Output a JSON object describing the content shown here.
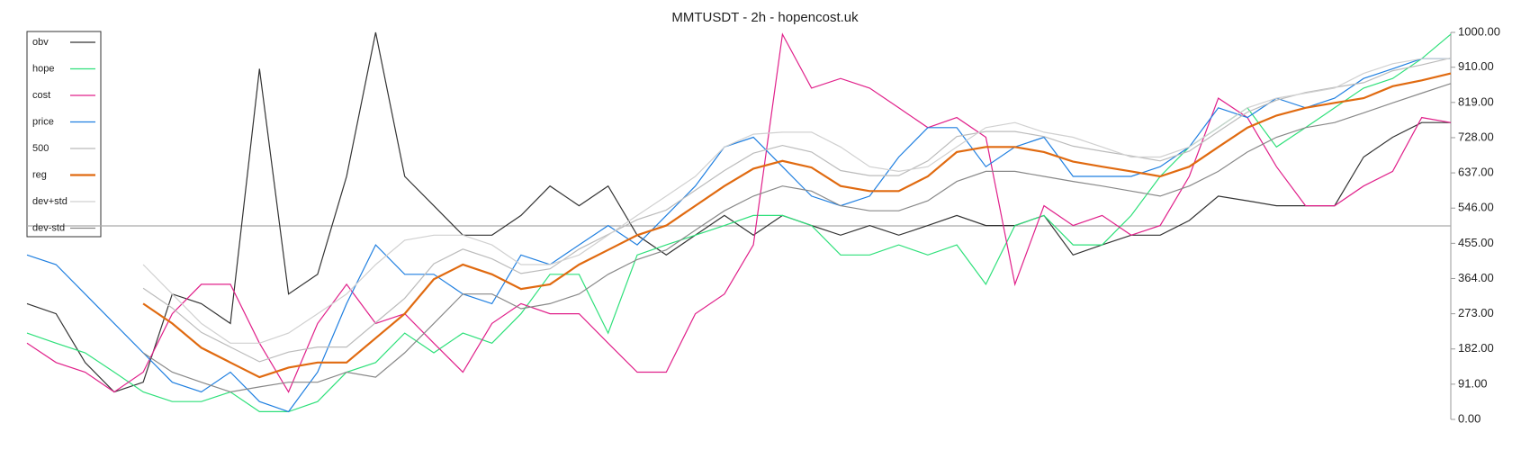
{
  "chart_data": {
    "type": "line",
    "title": "MMTUSDT - 2h - hopencost.uk",
    "categories": [
      null,
      null,
      null,
      null,
      null,
      null,
      null,
      null,
      null,
      null,
      null,
      null,
      null,
      null,
      null,
      null,
      null,
      null,
      null,
      null,
      null,
      null,
      null,
      null,
      null,
      null,
      null,
      null,
      null,
      null,
      null,
      null,
      null,
      null,
      null,
      null,
      null,
      null,
      null,
      null,
      null,
      null,
      null,
      null,
      null,
      null,
      null,
      null,
      null,
      null
    ],
    "ylim": [
      0,
      1000
    ],
    "yticks": [
      {
        "value": 0,
        "label": "0.00"
      },
      {
        "value": 91,
        "label": "91.00"
      },
      {
        "value": 182,
        "label": "182.00"
      },
      {
        "value": 273,
        "label": "273.00"
      },
      {
        "value": 364,
        "label": "364.00"
      },
      {
        "value": 455,
        "label": "455.00"
      },
      {
        "value": 546,
        "label": "546.00"
      },
      {
        "value": 637,
        "label": "637.00"
      },
      {
        "value": 728,
        "label": "728.00"
      },
      {
        "value": 819,
        "label": "819.00"
      },
      {
        "value": 910,
        "label": "910.00"
      },
      {
        "value": 1000,
        "label": "1000.00"
      }
    ],
    "reference_line": 500,
    "legend": "top-left",
    "series": [
      {
        "name": "obv",
        "color": "#333333",
        "values": [
          299,
          273,
          147,
          71,
          96,
          324,
          299,
          248,
          906,
          324,
          375,
          628,
          1000,
          628,
          552,
          476,
          476,
          527,
          603,
          552,
          603,
          476,
          425,
          476,
          527,
          476,
          527,
          501,
          476,
          501,
          476,
          501,
          527,
          501,
          501,
          527,
          425,
          451,
          476,
          476,
          514,
          577,
          565,
          552,
          552,
          552,
          678,
          729,
          767,
          767
        ]
      },
      {
        "name": "hope",
        "color": "#2ee07a",
        "values": [
          223,
          197,
          172,
          122,
          71,
          46,
          46,
          71,
          20,
          20,
          46,
          122,
          147,
          223,
          172,
          223,
          197,
          273,
          375,
          375,
          223,
          425,
          451,
          476,
          501,
          527,
          527,
          501,
          425,
          425,
          451,
          425,
          451,
          349,
          501,
          527,
          451,
          451,
          527,
          628,
          704,
          754,
          805,
          704,
          754,
          805,
          856,
          881,
          932,
          995
        ]
      },
      {
        "name": "cost",
        "color": "#e0208a",
        "values": [
          197,
          147,
          122,
          71,
          122,
          273,
          349,
          349,
          197,
          71,
          248,
          349,
          248,
          273,
          197,
          122,
          248,
          299,
          273,
          273,
          197,
          122,
          122,
          273,
          324,
          451,
          995,
          856,
          881,
          856,
          805,
          754,
          780,
          729,
          349,
          552,
          501,
          527,
          476,
          501,
          628,
          830,
          780,
          653,
          552,
          552,
          603,
          641,
          780,
          767
        ]
      },
      {
        "name": "price",
        "color": "#1f7fe0",
        "values": [
          425,
          400,
          324,
          248,
          172,
          96,
          71,
          122,
          46,
          20,
          122,
          299,
          451,
          375,
          375,
          324,
          299,
          425,
          400,
          451,
          501,
          451,
          527,
          603,
          704,
          729,
          653,
          577,
          552,
          577,
          678,
          754,
          754,
          653,
          704,
          729,
          628,
          628,
          628,
          653,
          704,
          805,
          780,
          830,
          805,
          830,
          881,
          906,
          932,
          932
        ]
      },
      {
        "name": "500",
        "color": "#bbbbbb",
        "values": [
          null,
          null,
          null,
          null,
          339,
          288,
          225,
          187,
          149,
          174,
          187,
          187,
          250,
          313,
          402,
          440,
          415,
          377,
          389,
          440,
          478,
          516,
          541,
          592,
          643,
          688,
          708,
          691,
          643,
          630,
          630,
          668,
          731,
          744,
          744,
          731,
          706,
          693,
          681,
          668,
          693,
          744,
          794,
          825,
          845,
          858,
          870,
          901,
          916,
          934
        ]
      },
      {
        "name": "reg",
        "color": "#e06a10",
        "values": [
          null,
          null,
          null,
          null,
          299,
          248,
          185,
          147,
          109,
          134,
          147,
          147,
          210,
          273,
          362,
          400,
          375,
          337,
          349,
          400,
          438,
          476,
          501,
          552,
          603,
          648,
          668,
          651,
          603,
          590,
          590,
          628,
          691,
          704,
          704,
          691,
          666,
          653,
          641,
          628,
          653,
          704,
          754,
          785,
          805,
          818,
          830,
          861,
          876,
          894
        ]
      },
      {
        "name": "dev+std",
        "color": "#d0d0d0",
        "values": [
          null,
          null,
          null,
          null,
          400,
          324,
          248,
          197,
          197,
          223,
          273,
          324,
          400,
          463,
          476,
          476,
          451,
          400,
          400,
          425,
          476,
          527,
          577,
          628,
          704,
          737,
          742,
          742,
          704,
          653,
          641,
          653,
          704,
          754,
          767,
          742,
          729,
          704,
          678,
          678,
          704,
          754,
          805,
          830,
          843,
          856,
          894,
          919,
          932,
          932
        ]
      },
      {
        "name": "dev-std",
        "color": "#888888",
        "values": [
          null,
          null,
          null,
          null,
          172,
          122,
          96,
          71,
          84,
          96,
          96,
          122,
          109,
          172,
          248,
          324,
          324,
          286,
          299,
          324,
          375,
          413,
          438,
          489,
          539,
          577,
          603,
          590,
          552,
          539,
          539,
          565,
          615,
          641,
          641,
          628,
          615,
          603,
          590,
          577,
          603,
          641,
          691,
          729,
          754,
          767,
          792,
          818,
          843,
          868
        ]
      }
    ]
  }
}
